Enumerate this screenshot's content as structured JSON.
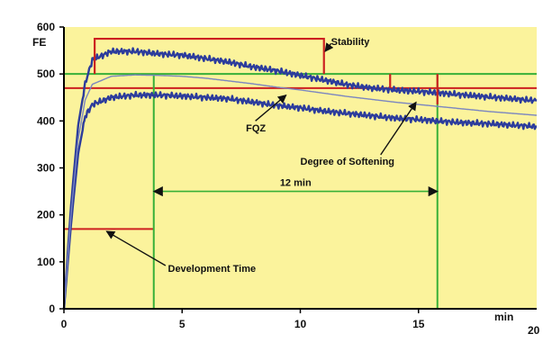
{
  "chart_data": {
    "type": "line",
    "title": "",
    "xlabel": "min",
    "ylabel": "FE",
    "xlim": [
      0,
      20
    ],
    "ylim": [
      0,
      600
    ],
    "x_ticks": [
      0,
      5,
      10,
      15
    ],
    "x_end_tick": "20",
    "y_ticks": [
      0,
      100,
      200,
      300,
      400,
      500,
      600
    ],
    "grid": false,
    "plot_background": "#fbf39c",
    "colors": {
      "curve": "#2c3c9c",
      "fqz_curve": "#7b86c0",
      "marker": "#cc2020",
      "guide": "#38b038"
    },
    "series": [
      {
        "x": [
          0,
          0.3,
          0.6,
          0.9,
          1.2,
          2,
          3,
          4,
          5,
          6,
          7,
          8,
          9,
          10,
          11,
          12,
          13,
          14,
          15,
          16,
          17,
          18,
          19,
          20
        ],
        "values": [
          0,
          220,
          390,
          480,
          530,
          548,
          548,
          543,
          540,
          533,
          525,
          515,
          507,
          497,
          487,
          477,
          470,
          466,
          463,
          459,
          455,
          451,
          447,
          443
        ]
      },
      {
        "x": [
          0,
          0.3,
          0.6,
          0.9,
          1.2,
          2,
          3,
          4,
          5,
          6,
          7,
          8,
          9,
          10,
          11,
          12,
          13,
          14,
          15,
          16,
          17,
          18,
          19,
          20
        ],
        "values": [
          0,
          180,
          330,
          410,
          435,
          450,
          455,
          455,
          453,
          450,
          447,
          440,
          433,
          428,
          421,
          416,
          411,
          406,
          403,
          399,
          396,
          394,
          391,
          388
        ]
      },
      {
        "x": [
          0,
          0.3,
          0.6,
          0.9,
          1.2,
          2,
          3,
          4,
          5,
          6,
          7,
          8,
          9,
          10,
          11,
          12,
          13,
          14,
          15,
          16,
          17,
          18,
          19,
          20
        ],
        "values": [
          0,
          200,
          360,
          445,
          478,
          495,
          498,
          497,
          495,
          491,
          485,
          479,
          472,
          466,
          459,
          452,
          446,
          440,
          435,
          430,
          425,
          420,
          416,
          412
        ]
      }
    ],
    "reference_lines": [
      {
        "kind": "hline",
        "y": 500,
        "from_x": 0,
        "to_x": 20,
        "color": "guide"
      },
      {
        "kind": "hline",
        "y": 470,
        "from_x": 0,
        "to_x": 20,
        "color": "marker"
      },
      {
        "kind": "hline",
        "y": 170,
        "from_x": 0,
        "to_x": 3.8,
        "color": "marker"
      },
      {
        "kind": "vline",
        "x": 3.8,
        "from_y": 0,
        "to_y": 500,
        "color": "guide"
      },
      {
        "kind": "vline",
        "x": 15.8,
        "from_y": 0,
        "to_y": 500,
        "color": "guide"
      }
    ],
    "stability_bracket": {
      "x_start": 1.3,
      "x_end": 11.0,
      "y_top": 575,
      "y_bottom": 500
    },
    "softening_bracket": {
      "x": 15.8,
      "y_top": 500,
      "y_bottom": 435
    },
    "step_marker": {
      "x": 13.8,
      "y_top": 500,
      "y_bottom": 470
    },
    "dimension": {
      "label": "12 min",
      "x_start": 3.8,
      "x_end": 15.8,
      "y": 250
    },
    "annotations": [
      {
        "text": "Stability",
        "x": 11.3,
        "y": 562
      },
      {
        "text": "FQZ",
        "x": 7.7,
        "y": 378
      },
      {
        "text": "Degree of Softening",
        "x": 10.0,
        "y": 307
      },
      {
        "text": "Development Time",
        "x": 4.4,
        "y": 79
      }
    ],
    "arrows": [
      {
        "from": [
          11.3,
          565
        ],
        "to": [
          11.05,
          548
        ]
      },
      {
        "from": [
          8.1,
          400
        ],
        "to": [
          9.4,
          455
        ]
      },
      {
        "from": [
          13.4,
          328
        ],
        "to": [
          14.9,
          440
        ]
      },
      {
        "from": [
          4.3,
          92
        ],
        "to": [
          1.8,
          165
        ]
      }
    ]
  }
}
